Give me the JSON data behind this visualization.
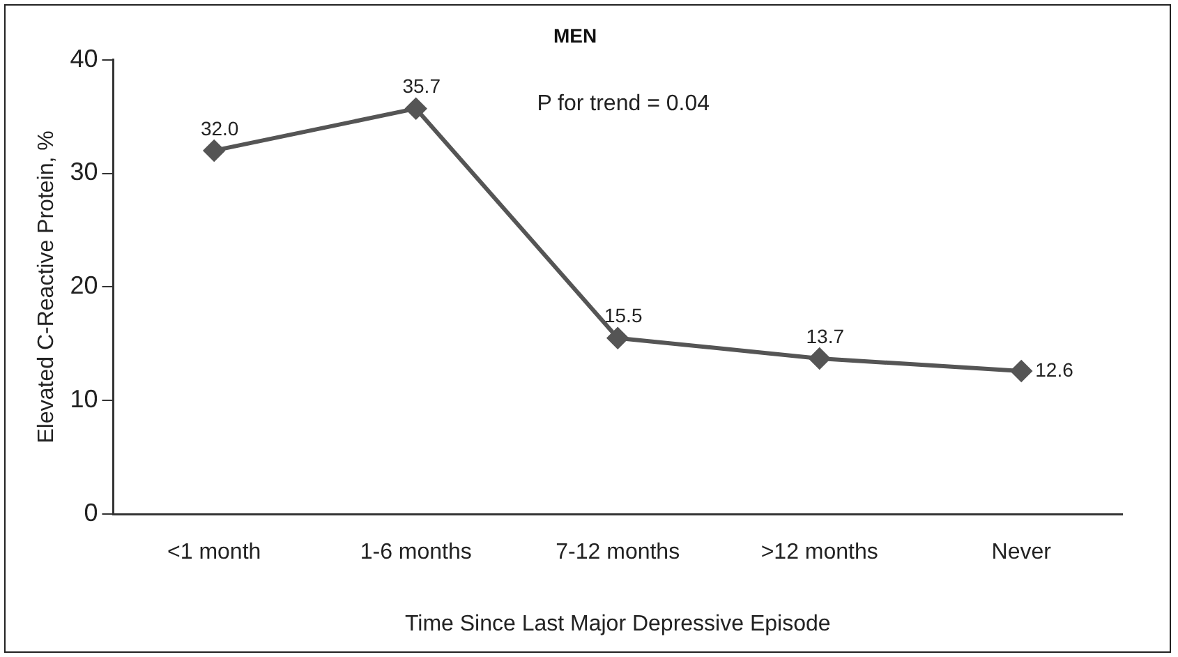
{
  "chart_data": {
    "type": "line",
    "title": "MEN",
    "xlabel": "Time Since Last Major Depressive Episode",
    "ylabel": "Elevated C-Reactive Protein, %",
    "categories": [
      "<1 month",
      "1-6 months",
      "7-12 months",
      ">12 months",
      "Never"
    ],
    "series": [
      {
        "color": "#555555",
        "values": [
          32.0,
          35.7,
          15.5,
          13.7,
          12.6
        ]
      }
    ],
    "value_labels": [
      "32.0",
      "35.7",
      "15.5",
      "13.7",
      "12.6"
    ],
    "annotations": [
      "P for trend = 0.04"
    ],
    "ylim": [
      0,
      40
    ],
    "yticks": [
      0,
      10,
      20,
      30,
      40
    ],
    "grid": false,
    "legend": false,
    "marker": "diamond",
    "line_style": "solid"
  }
}
